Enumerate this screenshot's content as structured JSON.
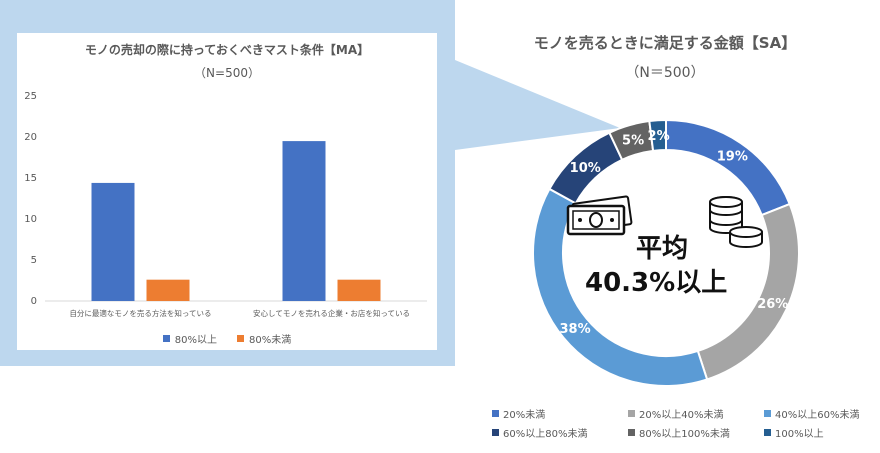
{
  "chart_data": [
    {
      "type": "bar",
      "title": "モノの売却の際に持っておくべきマスト条件【MA】",
      "subtitle": "（N=500）",
      "categories": [
        "自分に最適なモノを売る方法を知っている",
        "安心してモノを売れる企業・お店を知っている"
      ],
      "series": [
        {
          "name": "80%以上",
          "color": "#4472c4",
          "values": [
            14.4,
            19.5
          ]
        },
        {
          "name": "80%未満",
          "color": "#ed7d31",
          "values": [
            2.6,
            2.6
          ]
        }
      ],
      "ylim": [
        0,
        25
      ],
      "yticks": [
        "0",
        "5",
        "10",
        "15",
        "20",
        "25"
      ],
      "legend": "bottom"
    },
    {
      "type": "pie",
      "title": "モノを売るときに満足する金額【SA】",
      "subtitle": "（N＝500）",
      "slices": [
        {
          "name": "20%未満",
          "value": 19,
          "label": "19%",
          "color": "#4472c4"
        },
        {
          "name": "20%以上40%未満",
          "value": 26,
          "label": "26%",
          "color": "#a5a5a5"
        },
        {
          "name": "40%以上60%未満",
          "value": 38,
          "label": "38%",
          "color": "#5b9bd5"
        },
        {
          "name": "60%以上80%未満",
          "value": 10,
          "label": "10%",
          "color": "#264478"
        },
        {
          "name": "80%以上100%未満",
          "value": 5,
          "label": "5%",
          "color": "#636363"
        },
        {
          "name": "100%以上",
          "value": 2,
          "label": "2%",
          "color": "#255e91"
        }
      ],
      "center_text": [
        "平均",
        "40.3%以上"
      ],
      "legend": "bottom"
    }
  ]
}
